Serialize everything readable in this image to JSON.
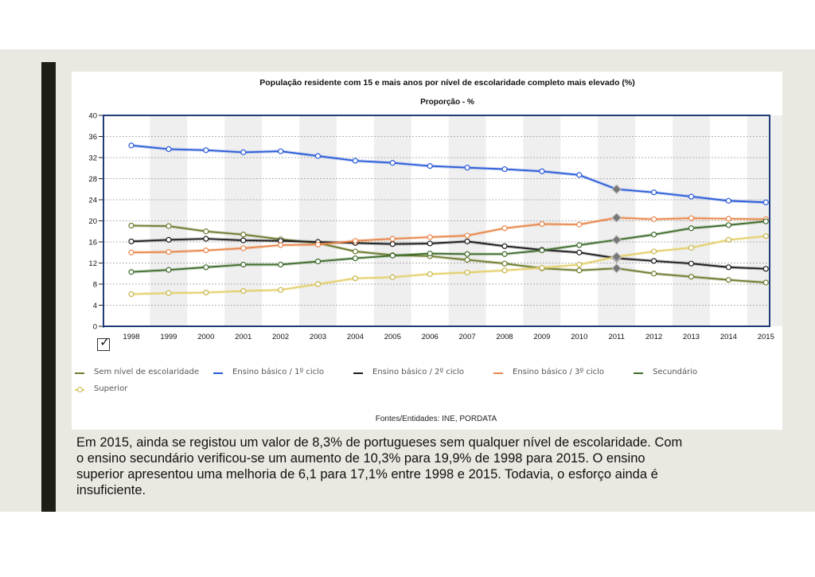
{
  "chart_data": {
    "type": "line",
    "title": "População residente com 15 e mais anos por nível de escolaridade completo mais elevado (%)",
    "subtitle": "Proporção - %",
    "ylim": [
      0,
      40
    ],
    "y_ticks": [
      0,
      4,
      8,
      12,
      16,
      20,
      24,
      28,
      32,
      36,
      40
    ],
    "grid": true,
    "legend_position": "bottom",
    "categories": [
      "1998",
      "1999",
      "2000",
      "2001",
      "2002",
      "2003",
      "2004",
      "2005",
      "2006",
      "2007",
      "2008",
      "2009",
      "2010",
      "2011",
      "2012",
      "2013",
      "2014",
      "2015"
    ],
    "break_year_index": 13,
    "series": [
      {
        "name": "Sem nível de escolaridade",
        "color": "#6b7c2e",
        "values": [
          19.1,
          19.0,
          18.0,
          17.4,
          16.5,
          15.8,
          14.2,
          13.5,
          13.3,
          12.6,
          11.9,
          11.0,
          10.6,
          11.0,
          10.0,
          9.4,
          8.8,
          8.3
        ]
      },
      {
        "name": "Ensino básico / 1º ciclo",
        "color": "#2a5bd7",
        "values": [
          34.3,
          33.6,
          33.4,
          33.0,
          33.2,
          32.3,
          31.4,
          31.0,
          30.4,
          30.1,
          29.8,
          29.4,
          28.7,
          26.0,
          25.4,
          24.6,
          23.8,
          23.5
        ]
      },
      {
        "name": "Ensino básico / 2º ciclo",
        "color": "#1c1c1c",
        "values": [
          16.1,
          16.4,
          16.6,
          16.3,
          16.2,
          16.0,
          15.8,
          15.6,
          15.7,
          16.1,
          15.2,
          14.5,
          14.0,
          12.9,
          12.4,
          11.9,
          11.2,
          10.9
        ]
      },
      {
        "name": "Ensino básico / 3º ciclo",
        "color": "#e8874a",
        "values": [
          14.0,
          14.1,
          14.4,
          14.8,
          15.4,
          15.5,
          16.2,
          16.6,
          16.9,
          17.2,
          18.6,
          19.4,
          19.3,
          20.6,
          20.3,
          20.5,
          20.4,
          20.3
        ]
      },
      {
        "name": "Secundário",
        "color": "#3d6b2a",
        "values": [
          10.3,
          10.7,
          11.2,
          11.7,
          11.7,
          12.3,
          12.9,
          13.4,
          13.8,
          13.7,
          13.7,
          14.4,
          15.4,
          16.4,
          17.4,
          18.6,
          19.2,
          19.9
        ]
      },
      {
        "name": "Superior",
        "color": "#e4d06a",
        "values": [
          6.1,
          6.3,
          6.4,
          6.7,
          6.9,
          8.0,
          9.1,
          9.3,
          9.9,
          10.2,
          10.6,
          11.1,
          11.7,
          13.2,
          14.2,
          14.9,
          16.4,
          17.1
        ]
      }
    ],
    "source": "Fontes/Entidades: INE, PORDATA"
  },
  "caption": [
    "Em 2015, ainda se registou um valor de 8,3% de portugueses sem qualquer nível de escolaridade. Com",
    "o ensino secundário verificou-se um aumento de 10,3% para 19,9% de 1998 para 2015. O ensino",
    "superior apresentou uma melhoria de 6,1 para 17,1% entre 1998 e 2015. Todavia, o esforço ainda é",
    "insuficiente."
  ],
  "checkbox_glyph": "✓"
}
